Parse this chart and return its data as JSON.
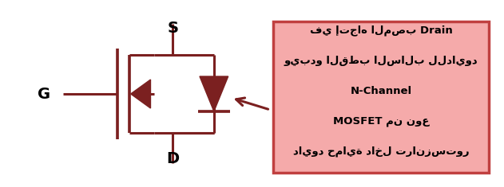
{
  "color": "#7B2020",
  "box_bg": "#F5AAAA",
  "box_edge": "#C04040",
  "text_color": "#000000",
  "line_width": 2.2,
  "label_D": "D",
  "label_S": "S",
  "label_G": "G",
  "annotation_lines": [
    "دايود حماية داخل ترانزستور",
    "MOSFET من نوع",
    "N-Channel",
    "ويبدو القطب السالب للدايود",
    "في إتجاه المصب Drain"
  ]
}
